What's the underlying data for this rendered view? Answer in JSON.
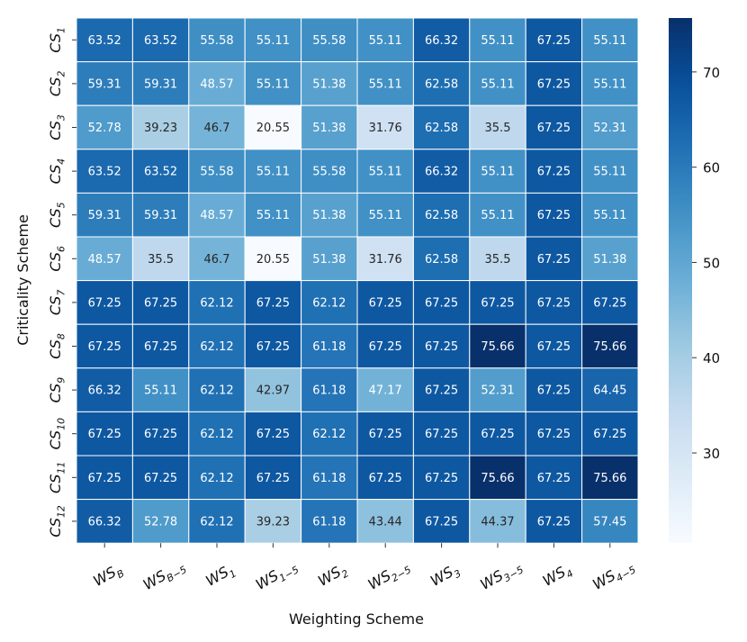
{
  "chart_data": {
    "type": "heatmap",
    "title": "",
    "xlabel": "Weighting Scheme",
    "ylabel": "Criticality Scheme",
    "x_categories": [
      {
        "base": "WS",
        "sub": "B"
      },
      {
        "base": "WS",
        "sub": "B−5"
      },
      {
        "base": "WS",
        "sub": "1"
      },
      {
        "base": "WS",
        "sub": "1−5"
      },
      {
        "base": "WS",
        "sub": "2"
      },
      {
        "base": "WS",
        "sub": "2−5"
      },
      {
        "base": "WS",
        "sub": "3"
      },
      {
        "base": "WS",
        "sub": "3−5"
      },
      {
        "base": "WS",
        "sub": "4"
      },
      {
        "base": "WS",
        "sub": "4−5"
      }
    ],
    "y_categories": [
      {
        "base": "CS",
        "sub": "1"
      },
      {
        "base": "CS",
        "sub": "2"
      },
      {
        "base": "CS",
        "sub": "3"
      },
      {
        "base": "CS",
        "sub": "4"
      },
      {
        "base": "CS",
        "sub": "5"
      },
      {
        "base": "CS",
        "sub": "6"
      },
      {
        "base": "CS",
        "sub": "7"
      },
      {
        "base": "CS",
        "sub": "8"
      },
      {
        "base": "CS",
        "sub": "9"
      },
      {
        "base": "CS",
        "sub": "10"
      },
      {
        "base": "CS",
        "sub": "11"
      },
      {
        "base": "CS",
        "sub": "12"
      }
    ],
    "values": [
      [
        63.52,
        63.52,
        55.58,
        55.11,
        55.58,
        55.11,
        66.32,
        55.11,
        67.25,
        55.11
      ],
      [
        59.31,
        59.31,
        48.57,
        55.11,
        51.38,
        55.11,
        62.58,
        55.11,
        67.25,
        55.11
      ],
      [
        52.78,
        39.23,
        46.7,
        20.55,
        51.38,
        31.76,
        62.58,
        35.5,
        67.25,
        52.31
      ],
      [
        63.52,
        63.52,
        55.58,
        55.11,
        55.58,
        55.11,
        66.32,
        55.11,
        67.25,
        55.11
      ],
      [
        59.31,
        59.31,
        48.57,
        55.11,
        51.38,
        55.11,
        62.58,
        55.11,
        67.25,
        55.11
      ],
      [
        48.57,
        35.5,
        46.7,
        20.55,
        51.38,
        31.76,
        62.58,
        35.5,
        67.25,
        51.38
      ],
      [
        67.25,
        67.25,
        62.12,
        67.25,
        62.12,
        67.25,
        67.25,
        67.25,
        67.25,
        67.25
      ],
      [
        67.25,
        67.25,
        62.12,
        67.25,
        61.18,
        67.25,
        67.25,
        75.66,
        67.25,
        75.66
      ],
      [
        66.32,
        55.11,
        62.12,
        42.97,
        61.18,
        47.17,
        67.25,
        52.31,
        67.25,
        64.45
      ],
      [
        67.25,
        67.25,
        62.12,
        67.25,
        62.12,
        67.25,
        67.25,
        67.25,
        67.25,
        67.25
      ],
      [
        67.25,
        67.25,
        62.12,
        67.25,
        61.18,
        67.25,
        67.25,
        75.66,
        67.25,
        75.66
      ],
      [
        66.32,
        52.78,
        62.12,
        39.23,
        61.18,
        43.44,
        67.25,
        44.37,
        67.25,
        57.45
      ]
    ],
    "value_labels": [
      [
        "63.52",
        "63.52",
        "55.58",
        "55.11",
        "55.58",
        "55.11",
        "66.32",
        "55.11",
        "67.25",
        "55.11"
      ],
      [
        "59.31",
        "59.31",
        "48.57",
        "55.11",
        "51.38",
        "55.11",
        "62.58",
        "55.11",
        "67.25",
        "55.11"
      ],
      [
        "52.78",
        "39.23",
        "46.7",
        "20.55",
        "51.38",
        "31.76",
        "62.58",
        "35.5",
        "67.25",
        "52.31"
      ],
      [
        "63.52",
        "63.52",
        "55.58",
        "55.11",
        "55.58",
        "55.11",
        "66.32",
        "55.11",
        "67.25",
        "55.11"
      ],
      [
        "59.31",
        "59.31",
        "48.57",
        "55.11",
        "51.38",
        "55.11",
        "62.58",
        "55.11",
        "67.25",
        "55.11"
      ],
      [
        "48.57",
        "35.5",
        "46.7",
        "20.55",
        "51.38",
        "31.76",
        "62.58",
        "35.5",
        "67.25",
        "51.38"
      ],
      [
        "67.25",
        "67.25",
        "62.12",
        "67.25",
        "62.12",
        "67.25",
        "67.25",
        "67.25",
        "67.25",
        "67.25"
      ],
      [
        "67.25",
        "67.25",
        "62.12",
        "67.25",
        "61.18",
        "67.25",
        "67.25",
        "75.66",
        "67.25",
        "75.66"
      ],
      [
        "66.32",
        "55.11",
        "62.12",
        "42.97",
        "61.18",
        "47.17",
        "67.25",
        "52.31",
        "67.25",
        "64.45"
      ],
      [
        "67.25",
        "67.25",
        "62.12",
        "67.25",
        "62.12",
        "67.25",
        "67.25",
        "67.25",
        "67.25",
        "67.25"
      ],
      [
        "67.25",
        "67.25",
        "62.12",
        "67.25",
        "61.18",
        "67.25",
        "67.25",
        "75.66",
        "67.25",
        "75.66"
      ],
      [
        "66.32",
        "52.78",
        "62.12",
        "39.23",
        "61.18",
        "43.44",
        "67.25",
        "44.37",
        "67.25",
        "57.45"
      ]
    ],
    "colorbar": {
      "colormap": "Blues",
      "vmin": 20.55,
      "vmax": 75.66,
      "ticks": [
        30,
        40,
        50,
        60,
        70
      ]
    },
    "colors": {
      "light_text": "#ffffff",
      "dark_text": "#262626",
      "cell_border": "#ffffff"
    },
    "grid": false,
    "legend": "colorbar-right"
  }
}
